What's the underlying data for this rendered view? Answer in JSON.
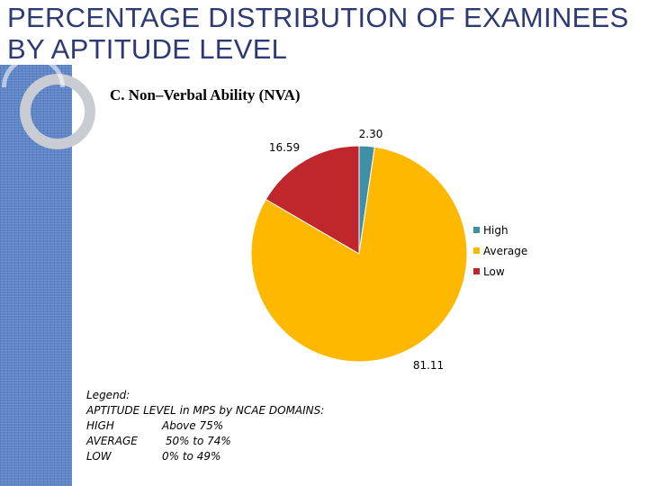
{
  "slide": {
    "title_line1": "PERCENTAGE DISTRIBUTION OF EXAMINEES",
    "title_line2": "BY APTITUDE LEVEL"
  },
  "chart_data": {
    "type": "pie",
    "title": "C. Non–Verbal Ability (NVA)",
    "categories": [
      "High",
      "Average",
      "Low"
    ],
    "values": [
      2.3,
      81.11,
      16.59
    ],
    "value_labels": [
      "2.30",
      "81.11",
      "16.59"
    ],
    "colors": [
      "#3f8fa6",
      "#ffb800",
      "#c0272d"
    ],
    "legend_position": "right"
  },
  "legend_note": {
    "heading": "Legend:",
    "subheading": "APTITUDE  LEVEL in MPS by NCAE DOMAINS:",
    "rows": [
      {
        "level": "HIGH",
        "range": "Above 75%"
      },
      {
        "level": "AVERAGE",
        "range": " 50% to 74%"
      },
      {
        "level": "LOW",
        "range": "0% to 49%"
      }
    ]
  }
}
